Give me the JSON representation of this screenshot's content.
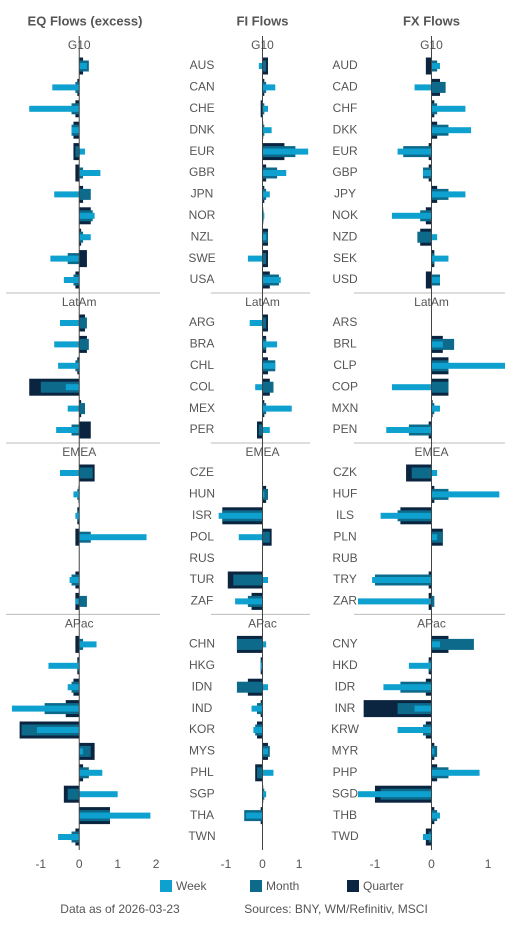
{
  "chart_data": [
    {
      "type": "bar",
      "orientation": "horizontal",
      "title": "EQ Flows (excess)",
      "xlim": [
        -1.8,
        2.1
      ],
      "xticks": [
        -1,
        0,
        1,
        2
      ],
      "groups": [
        {
          "name": "G10",
          "categories": [
            "AUS",
            "CAN",
            "CHE",
            "DNK",
            "EUR",
            "GBR",
            "JPN",
            "NOR",
            "NZL",
            "SWE",
            "USA"
          ],
          "series": [
            [
              0.2,
              -0.7,
              -1.3,
              -0.2,
              0.15,
              0.55,
              -0.65,
              0.4,
              0.3,
              -0.75,
              -0.4
            ],
            [
              0.25,
              -0.1,
              -0.2,
              -0.2,
              -0.1,
              0.1,
              0.3,
              0.35,
              0.1,
              -0.3,
              -0.15
            ],
            [
              0.1,
              -0.05,
              -0.1,
              -0.15,
              -0.15,
              -0.1,
              0.1,
              0.3,
              0.05,
              0.2,
              -0.1
            ]
          ]
        },
        {
          "name": "LatAm",
          "categories": [
            "ARG",
            "BRA",
            "CHL",
            "COL",
            "MEX",
            "PER"
          ],
          "series": [
            [
              -0.5,
              -0.65,
              -0.55,
              -0.35,
              -0.3,
              -0.6
            ],
            [
              0.2,
              0.25,
              -0.1,
              -1.0,
              0.15,
              -0.2
            ],
            [
              0.15,
              0.2,
              -0.05,
              -1.3,
              0.05,
              0.3
            ]
          ]
        },
        {
          "name": "EMEA",
          "categories": [
            "CZE",
            "HUN",
            "ISR",
            "POL",
            "RUS",
            "TUR",
            "ZAF"
          ],
          "series": [
            [
              -0.5,
              -0.15,
              -0.1,
              1.75,
              null,
              -0.25,
              -0.1
            ],
            [
              0.35,
              -0.05,
              -0.05,
              0.3,
              null,
              -0.2,
              0.2
            ],
            [
              0.4,
              -0.02,
              -0.05,
              -0.1,
              null,
              -0.1,
              -0.1
            ]
          ]
        },
        {
          "name": "APac",
          "categories": [
            "CHN",
            "HKG",
            "IDN",
            "IND",
            "KOR",
            "MYS",
            "PHL",
            "SGP",
            "THA",
            "TWN"
          ],
          "series": [
            [
              0.45,
              -0.8,
              -0.3,
              -1.75,
              -1.1,
              0.1,
              0.6,
              1.0,
              1.85,
              -0.55
            ],
            [
              0.1,
              -0.05,
              -0.2,
              -0.9,
              -1.5,
              0.3,
              0.25,
              -0.3,
              0.8,
              -0.2
            ],
            [
              -0.1,
              -0.05,
              -0.15,
              -0.35,
              -1.55,
              0.4,
              0.1,
              -0.4,
              0.8,
              -0.1
            ]
          ]
        }
      ]
    },
    {
      "type": "bar",
      "orientation": "horizontal",
      "title": "FI Flows",
      "xlim": [
        -1.3,
        1.3
      ],
      "xticks": [
        -1,
        0,
        1
      ],
      "groups": [
        {
          "name": "G10",
          "series": [
            [
              -0.1,
              0.35,
              0.15,
              0.25,
              1.25,
              0.65,
              0.2,
              0.05,
              0.1,
              -0.4,
              0.5
            ],
            [
              0.1,
              0.1,
              0.05,
              0.05,
              0.9,
              0.4,
              0.1,
              0.03,
              0.15,
              0.1,
              0.45
            ],
            [
              0.15,
              0.05,
              -0.05,
              0.02,
              0.6,
              0.1,
              0.05,
              0.02,
              0.15,
              0.15,
              0.2
            ]
          ]
        },
        {
          "name": "LatAm",
          "series": [
            [
              -0.35,
              0.4,
              0.35,
              -0.2,
              0.8,
              0.2
            ],
            [
              0.1,
              0.1,
              0.35,
              0.3,
              0.1,
              -0.1
            ],
            [
              0.15,
              0.1,
              0.15,
              0.2,
              0.05,
              -0.15
            ]
          ]
        },
        {
          "name": "EMEA",
          "series": [
            [
              null,
              0.05,
              -1.2,
              -0.65,
              null,
              0.15,
              -0.75
            ],
            [
              null,
              0.15,
              -1.1,
              0.2,
              null,
              -0.8,
              -0.4
            ],
            [
              null,
              0.1,
              -1.1,
              0.25,
              null,
              -0.95,
              -0.3
            ]
          ]
        },
        {
          "name": "APac",
          "series": [
            [
              0.1,
              -0.05,
              0.15,
              -0.3,
              -0.25,
              0.15,
              0.3,
              0.1,
              -0.45,
              null
            ],
            [
              -0.7,
              -0.05,
              -0.7,
              -0.15,
              -0.2,
              0.2,
              -0.15,
              0.05,
              -0.5,
              null
            ],
            [
              -0.7,
              -0.05,
              -0.4,
              -0.05,
              -0.15,
              0.15,
              -0.2,
              0.02,
              -0.05,
              null
            ]
          ]
        }
      ]
    },
    {
      "type": "bar",
      "orientation": "horizontal",
      "title": "FX Flows",
      "xlim": [
        -1.3,
        1.3
      ],
      "xticks": [
        -1,
        0,
        1
      ],
      "groups": [
        {
          "name": "G10",
          "categories": [
            "AUD",
            "CAD",
            "CHF",
            "DKK",
            "EUR",
            "GBP",
            "JPY",
            "NOK",
            "NZD",
            "SEK",
            "USD"
          ],
          "series": [
            [
              0.15,
              -0.3,
              0.6,
              0.7,
              -0.6,
              -0.15,
              0.6,
              -0.7,
              0.1,
              0.3,
              0.15
            ],
            [
              0.1,
              0.25,
              0.1,
              0.3,
              -0.5,
              -0.15,
              0.3,
              -0.2,
              -0.25,
              0.05,
              0.15
            ],
            [
              -0.1,
              0.15,
              0.05,
              0.1,
              -0.05,
              -0.05,
              0.1,
              -0.1,
              -0.2,
              0.05,
              -0.1
            ]
          ]
        },
        {
          "name": "LatAm",
          "categories": [
            "ARS",
            "BRL",
            "CLP",
            "COP",
            "MXN",
            "PEN"
          ],
          "series": [
            [
              null,
              0.2,
              1.3,
              -0.7,
              0.15,
              -0.8
            ],
            [
              null,
              0.4,
              0.3,
              0.3,
              0.05,
              -0.4
            ],
            [
              null,
              0.2,
              0.3,
              0.3,
              0.02,
              -0.05
            ]
          ]
        },
        {
          "name": "EMEA",
          "categories": [
            "CZK",
            "HUF",
            "ILS",
            "PLN",
            "RUB",
            "TRY",
            "ZAR"
          ],
          "series": [
            [
              0.1,
              1.2,
              -0.9,
              0.1,
              null,
              -1.05,
              -1.3
            ],
            [
              -0.35,
              0.3,
              -0.6,
              0.2,
              null,
              -1.0,
              0.05
            ],
            [
              -0.45,
              0.05,
              -0.55,
              0.2,
              null,
              -0.05,
              -0.05
            ]
          ]
        },
        {
          "name": "APac",
          "categories": [
            "CNY",
            "HKD",
            "IDR",
            "INR",
            "KRW",
            "MYR",
            "PHP",
            "SGD",
            "THB",
            "TWD"
          ],
          "series": [
            [
              0.15,
              -0.4,
              -0.85,
              -0.3,
              -0.6,
              0.05,
              0.85,
              -1.3,
              0.15,
              -0.15
            ],
            [
              0.75,
              -0.05,
              -0.55,
              -0.6,
              -0.15,
              0.1,
              0.3,
              -0.9,
              0.1,
              -0.05
            ],
            [
              0.3,
              -0.05,
              -0.1,
              -1.2,
              -0.1,
              0.05,
              0.1,
              -1.0,
              0.05,
              -0.1
            ]
          ]
        }
      ]
    }
  ],
  "legend": [
    {
      "name": "Week",
      "color": "#0ea1cf"
    },
    {
      "name": "Month",
      "color": "#0d6a8a"
    },
    {
      "name": "Quarter",
      "color": "#0b2540"
    }
  ],
  "footer": {
    "as_of": "Data as of 2026-03-23",
    "sources": "Sources:  BNY, WM/Refinitiv, MSCI"
  }
}
